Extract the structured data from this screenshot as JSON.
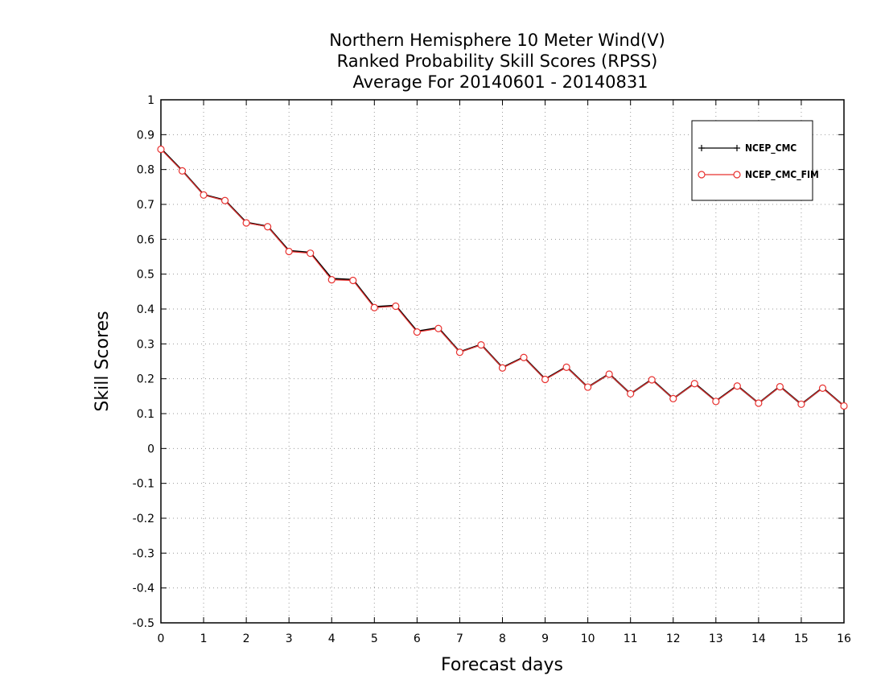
{
  "chart_data": {
    "type": "line",
    "title": [
      "Northern Hemisphere 10 Meter Wind(V)",
      "Ranked Probability Skill Scores (RPSS)",
      "Average For 20140601 - 20140831"
    ],
    "xlabel": "Forecast days",
    "ylabel": "Skill Scores",
    "xlim": [
      0,
      16
    ],
    "ylim": [
      -0.5,
      1
    ],
    "xticks": [
      "0",
      "1",
      "2",
      "3",
      "4",
      "5",
      "6",
      "7",
      "8",
      "9",
      "10",
      "11",
      "12",
      "13",
      "14",
      "15",
      "16"
    ],
    "yticks": [
      "-0.5",
      "-0.4",
      "-0.3",
      "-0.2",
      "-0.1",
      "0",
      "0.1",
      "0.2",
      "0.3",
      "0.4",
      "0.5",
      "0.6",
      "0.7",
      "0.8",
      "0.9",
      "1"
    ],
    "grid": true,
    "legend_position": "top-right",
    "x": [
      0,
      0.5,
      1,
      1.5,
      2,
      2.5,
      3,
      3.5,
      4,
      4.5,
      5,
      5.5,
      6,
      6.5,
      7,
      7.5,
      8,
      8.5,
      9,
      9.5,
      10,
      10.5,
      11,
      11.5,
      12,
      12.5,
      13,
      13.5,
      14,
      14.5,
      15,
      15.5,
      16
    ],
    "series": [
      {
        "name": "NCEP_CMC",
        "color": "#000000",
        "marker": "plus",
        "values": [
          0.86,
          0.797,
          0.728,
          0.712,
          0.648,
          0.637,
          0.567,
          0.562,
          0.487,
          0.484,
          0.406,
          0.41,
          0.336,
          0.346,
          0.277,
          0.298,
          0.232,
          0.262,
          0.199,
          0.234,
          0.176,
          0.214,
          0.157,
          0.198,
          0.143,
          0.187,
          0.136,
          0.18,
          0.13,
          0.178,
          0.127,
          0.174,
          0.122
        ]
      },
      {
        "name": "NCEP_CMC_FIM",
        "color": "#e8312f",
        "marker": "circle",
        "values": [
          0.858,
          0.796,
          0.727,
          0.711,
          0.647,
          0.636,
          0.565,
          0.56,
          0.484,
          0.482,
          0.404,
          0.408,
          0.334,
          0.344,
          0.276,
          0.297,
          0.231,
          0.261,
          0.198,
          0.233,
          0.176,
          0.213,
          0.157,
          0.197,
          0.143,
          0.186,
          0.135,
          0.179,
          0.13,
          0.177,
          0.127,
          0.173,
          0.122
        ]
      }
    ]
  }
}
